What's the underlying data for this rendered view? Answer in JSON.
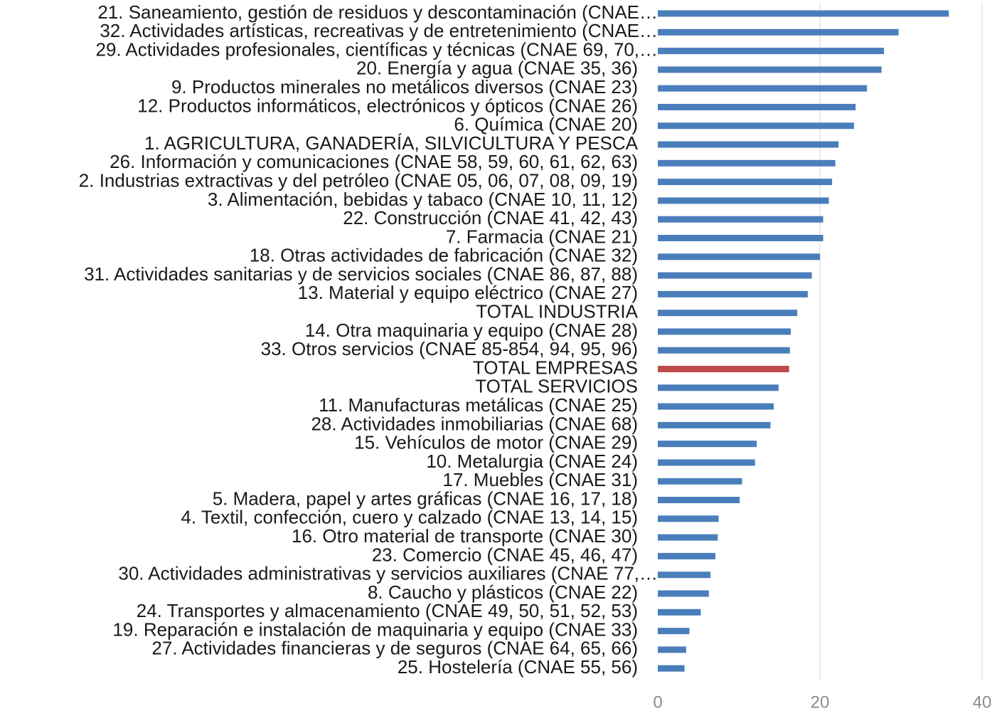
{
  "chart_data": {
    "type": "barh",
    "categories": [
      "21. Saneamiento, gestión de residuos y descontaminación (CNAE…",
      "32. Actividades artísticas, recreativas y de entretenimiento (CNAE…",
      "29. Actividades profesionales, científicas y técnicas (CNAE 69, 70,…",
      "20. Energía y agua (CNAE 35, 36)",
      "9. Productos minerales no metálicos diversos (CNAE 23)",
      "12. Productos informáticos, electrónicos y ópticos (CNAE 26)",
      "6. Química (CNAE 20)",
      "1. AGRICULTURA, GANADERÍA, SILVICULTURA Y PESCA",
      "26. Información y comunicaciones (CNAE 58, 59, 60, 61, 62, 63)",
      "2. Industrias extractivas y del petróleo (CNAE 05, 06, 07, 08, 09, 19)",
      "3. Alimentación, bebidas y tabaco (CNAE 10, 11, 12)",
      "22. Construcción (CNAE 41, 42, 43)",
      "7. Farmacia (CNAE 21)",
      "18. Otras actividades de fabricación (CNAE 32)",
      "31. Actividades sanitarias y de servicios sociales (CNAE 86, 87, 88)",
      "13. Material y equipo eléctrico (CNAE 27)",
      "TOTAL INDUSTRIA",
      "14. Otra maquinaria y equipo (CNAE 28)",
      "33. Otros servicios (CNAE 85-854, 94, 95, 96)",
      "TOTAL EMPRESAS",
      "TOTAL SERVICIOS",
      "11. Manufacturas metálicas (CNAE 25)",
      "28. Actividades inmobiliarias (CNAE 68)",
      "15. Vehículos de motor (CNAE 29)",
      "10. Metalurgia (CNAE 24)",
      "17. Muebles (CNAE 31)",
      "5. Madera, papel y artes gráficas (CNAE 16, 17, 18)",
      "4. Textil, confección, cuero y calzado (CNAE 13, 14, 15)",
      "16. Otro material de transporte (CNAE 30)",
      "23. Comercio (CNAE 45, 46, 47)",
      "30. Actividades administrativas y servicios auxiliares (CNAE 77,…",
      "8. Caucho y plásticos (CNAE 22)",
      "24. Transportes y almacenamiento (CNAE 49, 50, 51, 52, 53)",
      "19. Reparación e instalación de maquinaria y equipo (CNAE 33)",
      "27. Actividades financieras y de seguros (CNAE 64, 65, 66)",
      "25. Hostelería (CNAE 55, 56)"
    ],
    "values": [
      35.9,
      29.7,
      27.9,
      27.6,
      25.8,
      24.4,
      24.2,
      22.3,
      21.9,
      21.5,
      21.1,
      20.4,
      20.4,
      20.0,
      19.0,
      18.5,
      17.2,
      16.4,
      16.3,
      16.2,
      14.9,
      14.3,
      13.9,
      12.2,
      12.0,
      10.4,
      10.1,
      7.5,
      7.4,
      7.1,
      6.5,
      6.3,
      5.3,
      3.9,
      3.5,
      3.3
    ],
    "colors": [
      "#4a7ebb",
      "#4a7ebb",
      "#4a7ebb",
      "#4a7ebb",
      "#4a7ebb",
      "#4a7ebb",
      "#4a7ebb",
      "#4a7ebb",
      "#4a7ebb",
      "#4a7ebb",
      "#4a7ebb",
      "#4a7ebb",
      "#4a7ebb",
      "#4a7ebb",
      "#4a7ebb",
      "#4a7ebb",
      "#4a7ebb",
      "#4a7ebb",
      "#4a7ebb",
      "#be4b48",
      "#4a7ebb",
      "#4a7ebb",
      "#4a7ebb",
      "#4a7ebb",
      "#4a7ebb",
      "#4a7ebb",
      "#4a7ebb",
      "#4a7ebb",
      "#4a7ebb",
      "#4a7ebb",
      "#4a7ebb",
      "#4a7ebb",
      "#4a7ebb",
      "#4a7ebb",
      "#4a7ebb",
      "#4a7ebb"
    ],
    "xlim": [
      0,
      40
    ],
    "xticks": [
      0,
      20,
      40
    ],
    "grid": true
  }
}
